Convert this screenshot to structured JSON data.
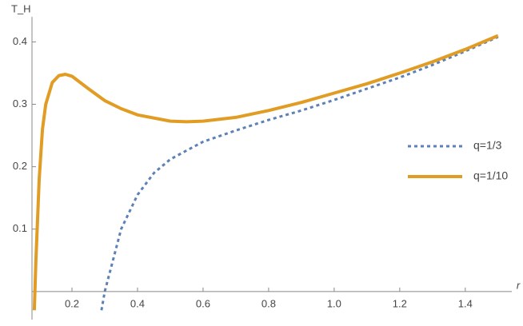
{
  "chart_data": {
    "type": "line",
    "y_label": "T_H",
    "x_label": "r",
    "xlim": [
      0.078,
      1.52
    ],
    "ylim": [
      -0.045,
      0.43
    ],
    "xticks": [
      0.2,
      0.4,
      0.6,
      0.8,
      {
        "value": 1,
        "label": "1.0"
      },
      1.2,
      1.4
    ],
    "yticks": [
      0.1,
      0.2,
      0.3,
      0.4
    ],
    "legend": "right",
    "series": [
      {
        "name": "q=1/3",
        "color": "#5e81b5",
        "dashed": true,
        "x": [
          0.29,
          0.3,
          0.32,
          0.35,
          0.4,
          0.45,
          0.5,
          0.6,
          0.7,
          0.8,
          0.9,
          1.0,
          1.1,
          1.2,
          1.3,
          1.4,
          1.5
        ],
        "values": [
          -0.03,
          0.0,
          0.04,
          0.1,
          0.155,
          0.19,
          0.212,
          0.24,
          0.258,
          0.275,
          0.29,
          0.307,
          0.325,
          0.343,
          0.363,
          0.385,
          0.408
        ]
      },
      {
        "name": "q=1/10",
        "color": "#e19c24",
        "dashed": false,
        "x": [
          0.085,
          0.09,
          0.1,
          0.11,
          0.12,
          0.14,
          0.16,
          0.18,
          0.2,
          0.25,
          0.3,
          0.35,
          0.4,
          0.5,
          0.55,
          0.6,
          0.7,
          0.8,
          0.9,
          1.0,
          1.1,
          1.2,
          1.3,
          1.4,
          1.5
        ],
        "values": [
          -0.03,
          0.05,
          0.18,
          0.26,
          0.3,
          0.335,
          0.346,
          0.348,
          0.345,
          0.325,
          0.306,
          0.293,
          0.283,
          0.273,
          0.272,
          0.273,
          0.279,
          0.29,
          0.303,
          0.318,
          0.333,
          0.35,
          0.368,
          0.388,
          0.41
        ]
      }
    ]
  }
}
